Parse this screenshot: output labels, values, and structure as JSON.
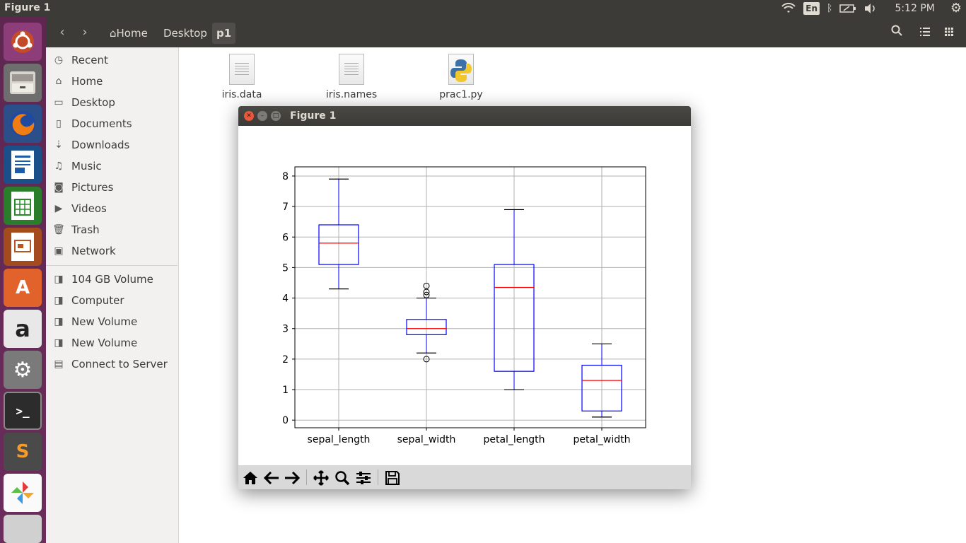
{
  "top_panel": {
    "window_title": "Figure 1",
    "language": "En",
    "clock": "5:12 PM"
  },
  "launcher": {
    "items": [
      "ubuntu-dash",
      "files",
      "firefox",
      "libreoffice-writer",
      "libreoffice-calc",
      "libreoffice-impress",
      "ubuntu-software",
      "amazon",
      "system-settings",
      "terminal",
      "sublime-text",
      "unknown-app",
      "trash-stack"
    ]
  },
  "file_manager": {
    "breadcrumbs": [
      "Home",
      "Desktop",
      "p1"
    ],
    "sidebar": {
      "places": [
        {
          "label": "Recent",
          "icon": "clock-icon"
        },
        {
          "label": "Home",
          "icon": "home-icon"
        },
        {
          "label": "Desktop",
          "icon": "folder-icon"
        },
        {
          "label": "Documents",
          "icon": "document-icon"
        },
        {
          "label": "Downloads",
          "icon": "download-icon"
        },
        {
          "label": "Music",
          "icon": "music-icon"
        },
        {
          "label": "Pictures",
          "icon": "camera-icon"
        },
        {
          "label": "Videos",
          "icon": "video-icon"
        },
        {
          "label": "Trash",
          "icon": "trash-icon"
        },
        {
          "label": "Network",
          "icon": "network-icon"
        }
      ],
      "devices": [
        {
          "label": "104 GB Volume",
          "icon": "drive-icon"
        },
        {
          "label": "Computer",
          "icon": "drive-icon"
        },
        {
          "label": "New Volume",
          "icon": "drive-icon"
        },
        {
          "label": "New Volume",
          "icon": "drive-icon"
        },
        {
          "label": "Connect to Server",
          "icon": "server-icon"
        }
      ]
    },
    "files": [
      {
        "name": "iris.data",
        "icon": "text-file-icon"
      },
      {
        "name": "iris.names",
        "icon": "text-file-icon"
      },
      {
        "name": "prac1.py",
        "icon": "python-file-icon"
      }
    ]
  },
  "figure_window": {
    "title": "Figure 1",
    "toolbar": [
      "home",
      "back",
      "forward",
      "pan",
      "zoom",
      "configure",
      "save"
    ]
  },
  "chart_data": {
    "type": "boxplot",
    "categories": [
      "sepal_length",
      "sepal_width",
      "petal_length",
      "petal_width"
    ],
    "boxes": [
      {
        "name": "sepal_length",
        "whisker_low": 4.3,
        "q1": 5.1,
        "median": 5.8,
        "q3": 6.4,
        "whisker_high": 7.9,
        "outliers": []
      },
      {
        "name": "sepal_width",
        "whisker_low": 2.2,
        "q1": 2.8,
        "median": 3.0,
        "q3": 3.3,
        "whisker_high": 4.0,
        "outliers": [
          2.0,
          4.1,
          4.2,
          4.4
        ]
      },
      {
        "name": "petal_length",
        "whisker_low": 1.0,
        "q1": 1.6,
        "median": 4.35,
        "q3": 5.1,
        "whisker_high": 6.9,
        "outliers": []
      },
      {
        "name": "petal_width",
        "whisker_low": 0.1,
        "q1": 0.3,
        "median": 1.3,
        "q3": 1.8,
        "whisker_high": 2.5,
        "outliers": []
      }
    ],
    "yticks": [
      0,
      1,
      2,
      3,
      4,
      5,
      6,
      7,
      8
    ],
    "ylim": [
      -0.25,
      8.3
    ],
    "grid": true,
    "colors": {
      "box": "#0000ff",
      "median": "#ff0000",
      "whisker": "#000000",
      "grid": "#b0b0b0"
    }
  }
}
